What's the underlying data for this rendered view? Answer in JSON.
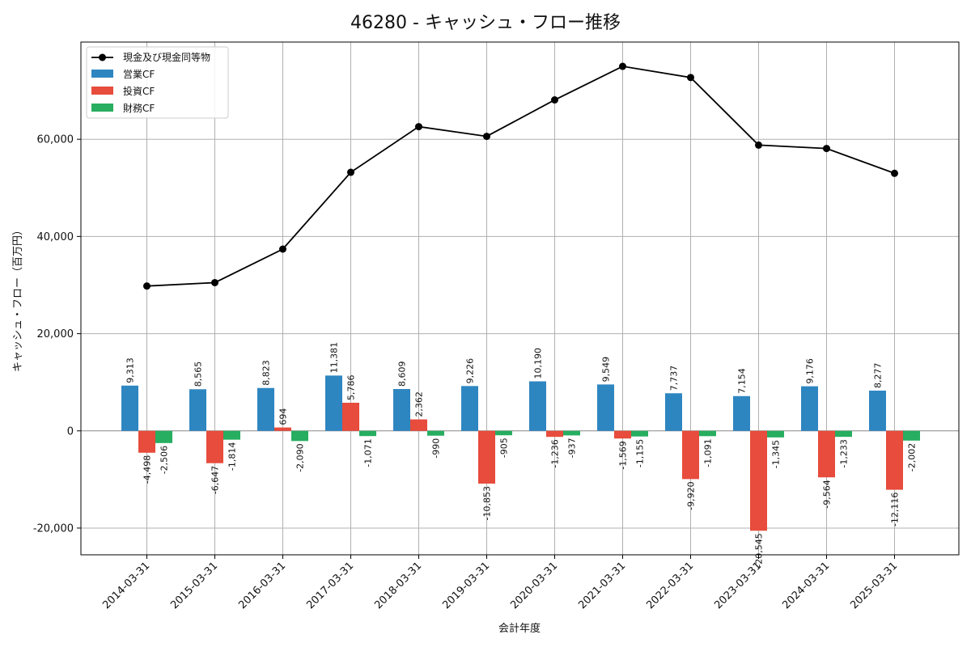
{
  "chart_data": {
    "type": "bar",
    "title": "46280 - キャッシュ・フロー推移",
    "xlabel": "会計年度",
    "ylabel": "キャッシュ・フロー（百万円）",
    "categories": [
      "2014-03-31",
      "2015-03-31",
      "2016-03-31",
      "2017-03-31",
      "2018-03-31",
      "2019-03-31",
      "2020-03-31",
      "2021-03-31",
      "2022-03-31",
      "2023-03-31",
      "2024-03-31",
      "2025-03-31"
    ],
    "ylim": [
      -25500,
      80000
    ],
    "yticks": [
      -20000,
      0,
      20000,
      40000,
      60000
    ],
    "ytick_labels": [
      "-20,000",
      "0",
      "20,000",
      "40,000",
      "60,000"
    ],
    "grid": true,
    "legend_position": "top-left",
    "series": [
      {
        "name": "営業CF",
        "type": "bar",
        "color": "#2e86c1",
        "values": [
          9313,
          8565,
          8823,
          11381,
          8609,
          9226,
          10190,
          9549,
          7737,
          7154,
          9176,
          8277
        ],
        "labels": [
          "9,313",
          "8,565",
          "8,823",
          "11,381",
          "8,609",
          "9,226",
          "10,190",
          "9,549",
          "7,737",
          "7,154",
          "9,176",
          "8,277"
        ]
      },
      {
        "name": "投資CF",
        "type": "bar",
        "color": "#e74c3c",
        "values": [
          -4498,
          -6647,
          694,
          5786,
          2362,
          -10853,
          -1236,
          -1569,
          -9920,
          -20545,
          -9564,
          -12116
        ],
        "labels": [
          "-4,498",
          "-6,647",
          "694",
          "5,786",
          "2,362",
          "-10,853",
          "-1,236",
          "-1,569",
          "-9,920",
          "-20,545",
          "-9,564",
          "-12,116"
        ]
      },
      {
        "name": "財務CF",
        "type": "bar",
        "color": "#27ae60",
        "values": [
          -2506,
          -1814,
          -2090,
          -1071,
          -990,
          -905,
          -937,
          -1155,
          -1091,
          -1345,
          -1233,
          -2002
        ],
        "labels": [
          "-2,506",
          "-1,814",
          "-2,090",
          "-1,071",
          "-990",
          "-905",
          "-937",
          "-1,155",
          "-1,091",
          "-1,345",
          "-1,233",
          "-2,002"
        ]
      },
      {
        "name": "現金及び現金同等物",
        "type": "line",
        "color": "#000000",
        "values": [
          29800,
          30500,
          37400,
          53200,
          62600,
          60600,
          68100,
          75000,
          72700,
          58800,
          58100,
          53000
        ]
      }
    ]
  }
}
